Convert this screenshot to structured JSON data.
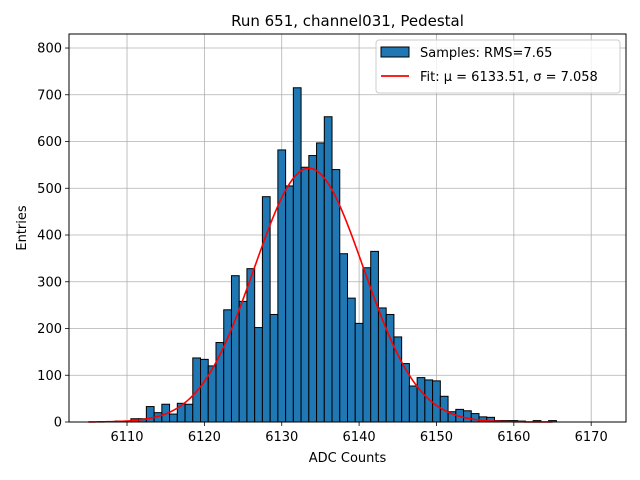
{
  "chart_data": {
    "type": "bar",
    "title": "Run 651, channel031, Pedestal",
    "xlabel": "ADC Counts",
    "ylabel": "Entries",
    "xlim": [
      6102.5,
      6174.5
    ],
    "ylim": [
      0,
      830
    ],
    "x_ticks": [
      6110,
      6120,
      6130,
      6140,
      6150,
      6160,
      6170
    ],
    "y_ticks": [
      0,
      100,
      200,
      300,
      400,
      500,
      600,
      700,
      800
    ],
    "grid": true,
    "legend_position": "top-right",
    "colors": {
      "bars": "#1f77b4",
      "bar_edge": "#000000",
      "fit": "#ff0000",
      "grid": "#b0b0b0"
    },
    "histogram": {
      "name": "Samples: RMS=7.65",
      "bins": [
        {
          "x": 6105,
          "value": 0
        },
        {
          "x": 6106,
          "value": 0
        },
        {
          "x": 6107,
          "value": 0
        },
        {
          "x": 6108,
          "value": 0
        },
        {
          "x": 6109,
          "value": 2
        },
        {
          "x": 6110,
          "value": 2
        },
        {
          "x": 6111,
          "value": 7
        },
        {
          "x": 6112,
          "value": 7
        },
        {
          "x": 6113,
          "value": 33
        },
        {
          "x": 6114,
          "value": 20
        },
        {
          "x": 6115,
          "value": 38
        },
        {
          "x": 6116,
          "value": 17
        },
        {
          "x": 6117,
          "value": 40
        },
        {
          "x": 6118,
          "value": 38
        },
        {
          "x": 6119,
          "value": 137
        },
        {
          "x": 6120,
          "value": 134
        },
        {
          "x": 6121,
          "value": 120
        },
        {
          "x": 6122,
          "value": 170
        },
        {
          "x": 6123,
          "value": 240
        },
        {
          "x": 6124,
          "value": 313
        },
        {
          "x": 6125,
          "value": 258
        },
        {
          "x": 6126,
          "value": 328
        },
        {
          "x": 6127,
          "value": 202
        },
        {
          "x": 6128,
          "value": 482
        },
        {
          "x": 6129,
          "value": 230
        },
        {
          "x": 6130,
          "value": 582
        },
        {
          "x": 6131,
          "value": 505
        },
        {
          "x": 6132,
          "value": 715
        },
        {
          "x": 6133,
          "value": 545
        },
        {
          "x": 6134,
          "value": 570
        },
        {
          "x": 6135,
          "value": 597
        },
        {
          "x": 6136,
          "value": 653
        },
        {
          "x": 6137,
          "value": 540
        },
        {
          "x": 6138,
          "value": 360
        },
        {
          "x": 6139,
          "value": 265
        },
        {
          "x": 6140,
          "value": 211
        },
        {
          "x": 6141,
          "value": 330
        },
        {
          "x": 6142,
          "value": 365
        },
        {
          "x": 6143,
          "value": 244
        },
        {
          "x": 6144,
          "value": 230
        },
        {
          "x": 6145,
          "value": 182
        },
        {
          "x": 6146,
          "value": 125
        },
        {
          "x": 6147,
          "value": 77
        },
        {
          "x": 6148,
          "value": 95
        },
        {
          "x": 6149,
          "value": 90
        },
        {
          "x": 6150,
          "value": 88
        },
        {
          "x": 6151,
          "value": 55
        },
        {
          "x": 6152,
          "value": 22
        },
        {
          "x": 6153,
          "value": 27
        },
        {
          "x": 6154,
          "value": 24
        },
        {
          "x": 6155,
          "value": 18
        },
        {
          "x": 6156,
          "value": 11
        },
        {
          "x": 6157,
          "value": 10
        },
        {
          "x": 6158,
          "value": 3
        },
        {
          "x": 6159,
          "value": 3
        },
        {
          "x": 6160,
          "value": 3
        },
        {
          "x": 6161,
          "value": 2
        },
        {
          "x": 6162,
          "value": 0
        },
        {
          "x": 6163,
          "value": 3
        },
        {
          "x": 6164,
          "value": 0
        },
        {
          "x": 6165,
          "value": 3
        }
      ]
    },
    "fit": {
      "name": "Fit: μ = 6133.51, σ = 7.058",
      "mu": 6133.51,
      "sigma": 7.058,
      "amplitude": 543,
      "x_range": [
        6105,
        6165
      ]
    }
  }
}
